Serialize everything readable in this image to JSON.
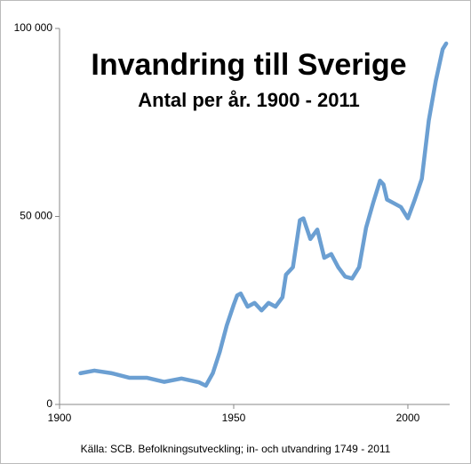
{
  "chart_data": {
    "type": "line",
    "title": "Invandring till Sverige",
    "subtitle": "Antal per år. 1900 - 2011",
    "source": "Källa: SCB. Befolkningsutveckling; in- och utvandring 1749 - 2011",
    "x": [
      1906,
      1910,
      1915,
      1920,
      1925,
      1930,
      1935,
      1940,
      1942,
      1944,
      1946,
      1948,
      1950,
      1951,
      1952,
      1954,
      1956,
      1958,
      1960,
      1962,
      1964,
      1965,
      1967,
      1969,
      1970,
      1972,
      1974,
      1976,
      1978,
      1980,
      1982,
      1984,
      1986,
      1988,
      1990,
      1992,
      1993,
      1994,
      1996,
      1998,
      2000,
      2002,
      2004,
      2006,
      2008,
      2010,
      2011
    ],
    "series": [
      {
        "name": "Invandring",
        "color": "#6b9fd2",
        "values": [
          8300,
          9000,
          8300,
          7100,
          7100,
          6000,
          6900,
          5900,
          5000,
          8300,
          14000,
          21000,
          26500,
          29000,
          29500,
          26000,
          27000,
          25000,
          27000,
          26000,
          28500,
          34500,
          36500,
          49000,
          49500,
          44000,
          46500,
          39000,
          40000,
          36500,
          34000,
          33500,
          36500,
          47000,
          53500,
          59500,
          58500,
          54500,
          53500,
          52500,
          49500,
          54500,
          60000,
          75500,
          86000,
          94500,
          96000
        ]
      }
    ],
    "xlim": [
      1900,
      2012
    ],
    "xticks": [
      1900,
      1950,
      2000
    ],
    "ylim": [
      0,
      100000
    ],
    "yticks": [
      0,
      {
        "value": 50000,
        "label": "50 000"
      },
      {
        "value": 100000,
        "label": "100 000"
      }
    ],
    "grid": false
  }
}
